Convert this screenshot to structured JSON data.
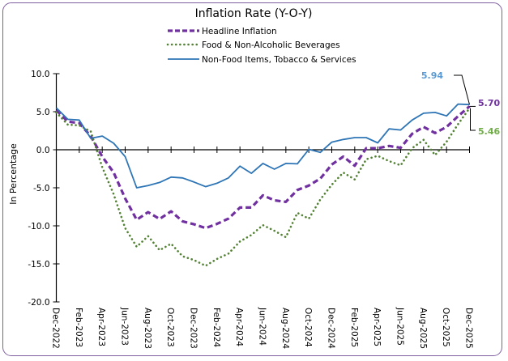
{
  "chart_data": {
    "type": "line",
    "title": "Inflation Rate (Y-O-Y)",
    "xlabel": "",
    "ylabel": "In Percentage",
    "ylim": [
      -20,
      10
    ],
    "yticks": [
      10,
      5,
      0,
      -5,
      -10,
      -15,
      -20
    ],
    "ytick_labels": [
      "10.0",
      "5.0",
      "0.0",
      "-5.0",
      "-10.0",
      "-15.0",
      "-20.0"
    ],
    "grid": false,
    "legend_position": "top-center",
    "x": [
      "Dec-2022",
      "Jan-2023",
      "Feb-2023",
      "Mar-2023",
      "Apr-2023",
      "May-2023",
      "Jun-2023",
      "Jul-2023",
      "Aug-2023",
      "Sep-2023",
      "Oct-2023",
      "Nov-2023",
      "Dec-2023",
      "Jan-2024",
      "Feb-2024",
      "Mar-2024",
      "Apr-2024",
      "May-2024",
      "Jun-2024",
      "Jul-2024",
      "Aug-2024",
      "Sep-2024",
      "Oct-2024",
      "Nov-2024",
      "Dec-2024",
      "Jan-2025",
      "Feb-2025",
      "Mar-2025",
      "Apr-2025",
      "May-2025",
      "Jun-2025",
      "Jul-2025",
      "Aug-2025",
      "Sep-2025",
      "Oct-2025",
      "Nov-2025",
      "Dec-2025"
    ],
    "xtick_labels": [
      "Dec-2022",
      "Feb-2023",
      "Apr-2023",
      "Jun-2023",
      "Aug-2023",
      "Oct-2023",
      "Dec-2023",
      "Feb-2024",
      "Apr-2024",
      "Jun-2024",
      "Aug-2024",
      "Oct-2024",
      "Dec-2024",
      "Feb-2025",
      "Apr-2025",
      "Jun-2025",
      "Aug-2025",
      "Oct-2025",
      "Dec-2025"
    ],
    "series": [
      {
        "name": "Headline Inflation",
        "color": "#7030a0",
        "style": "dashed",
        "values": [
          5.2,
          3.7,
          3.5,
          1.8,
          -0.9,
          -3.0,
          -6.4,
          -9.2,
          -8.2,
          -9.1,
          -8.1,
          -9.4,
          -9.8,
          -10.3,
          -9.75,
          -9.05,
          -7.6,
          -7.6,
          -6.0,
          -6.65,
          -6.85,
          -5.3,
          -4.7,
          -3.8,
          -1.95,
          -0.9,
          -2.1,
          0.2,
          0.2,
          0.5,
          0.25,
          2.1,
          3.0,
          2.2,
          3.0,
          4.4,
          5.7
        ]
      },
      {
        "name": "Food & Non-Alcoholic Beverages",
        "color": "#548235",
        "style": "dotted",
        "values": [
          4.9,
          3.3,
          3.2,
          2.4,
          -2.3,
          -5.85,
          -10.3,
          -12.75,
          -11.35,
          -13.2,
          -12.35,
          -14.0,
          -14.5,
          -15.25,
          -14.35,
          -13.65,
          -12.05,
          -11.2,
          -9.9,
          -10.65,
          -11.5,
          -8.3,
          -9.05,
          -6.55,
          -4.6,
          -3.0,
          -3.9,
          -1.25,
          -0.8,
          -1.5,
          -2.05,
          0.2,
          1.3,
          -0.7,
          1.05,
          3.35,
          5.46
        ]
      },
      {
        "name": "Non-Food Items, Tobacco & Services",
        "color": "#2e75b6",
        "style": "solid",
        "values": [
          5.5,
          4.0,
          3.9,
          1.5,
          1.8,
          0.85,
          -0.9,
          -5.0,
          -4.7,
          -4.3,
          -3.6,
          -3.7,
          -4.25,
          -4.85,
          -4.4,
          -3.7,
          -2.15,
          -3.1,
          -1.8,
          -2.55,
          -1.8,
          -1.85,
          0.05,
          -0.35,
          1.0,
          1.35,
          1.6,
          1.6,
          0.9,
          2.75,
          2.6,
          3.9,
          4.8,
          4.9,
          4.45,
          6.0,
          5.94
        ]
      }
    ],
    "annotations": [
      {
        "text": "5.94",
        "series": "Non-Food Items, Tobacco & Services",
        "color": "#5b9bd5"
      },
      {
        "text": "5.70",
        "series": "Headline Inflation",
        "color": "#7030a0"
      },
      {
        "text": "5.46",
        "series": "Food & Non-Alcoholic Beverages",
        "color": "#70ad47"
      }
    ]
  }
}
